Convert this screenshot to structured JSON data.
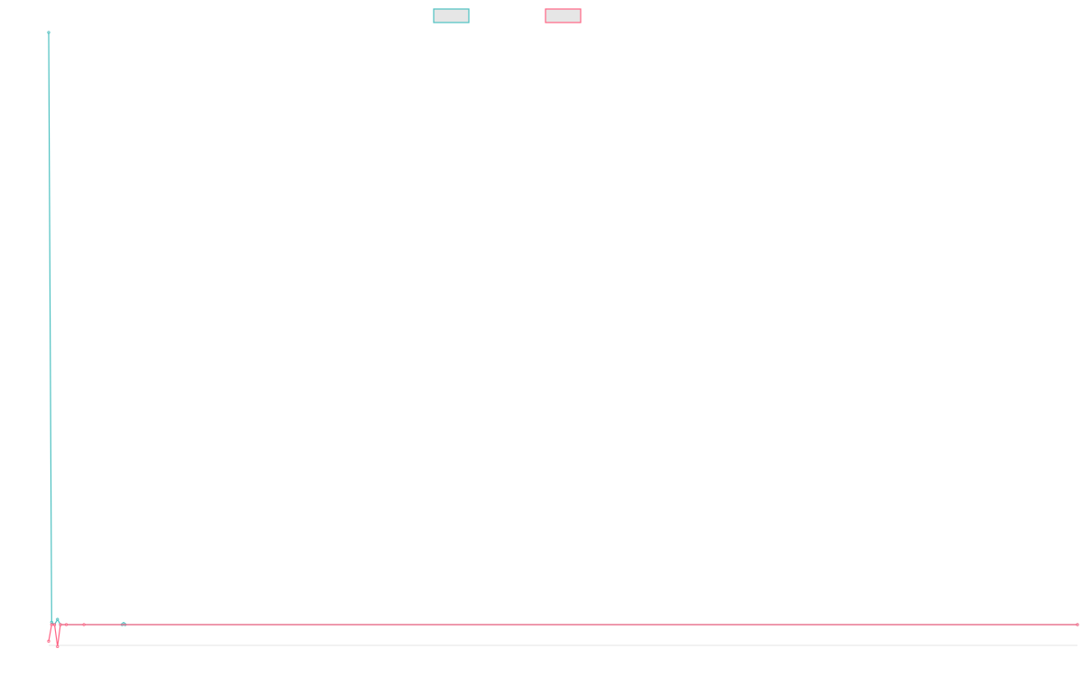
{
  "chart_data": {
    "type": "line",
    "title": "",
    "xlabel": "",
    "ylabel": "",
    "xlim": [
      0,
      350
    ],
    "ylim": [
      -3.5,
      100
    ],
    "grid": false,
    "legend_placement": "top",
    "series": [
      {
        "color": "#4bc0c0",
        "points": [
          [
            0,
            100
          ],
          [
            1,
            0.4
          ],
          [
            2,
            0
          ],
          [
            3,
            0.9
          ],
          [
            4,
            0
          ],
          [
            25,
            0
          ],
          [
            25.5,
            0.2
          ],
          [
            26,
            0
          ],
          [
            350,
            0
          ]
        ]
      },
      {
        "color": "#ff6384",
        "points": [
          [
            0,
            -2.8
          ],
          [
            1,
            0
          ],
          [
            2,
            0
          ],
          [
            3,
            -3.7
          ],
          [
            4,
            0
          ],
          [
            6,
            0
          ],
          [
            12,
            0
          ],
          [
            350,
            0
          ]
        ]
      }
    ]
  }
}
